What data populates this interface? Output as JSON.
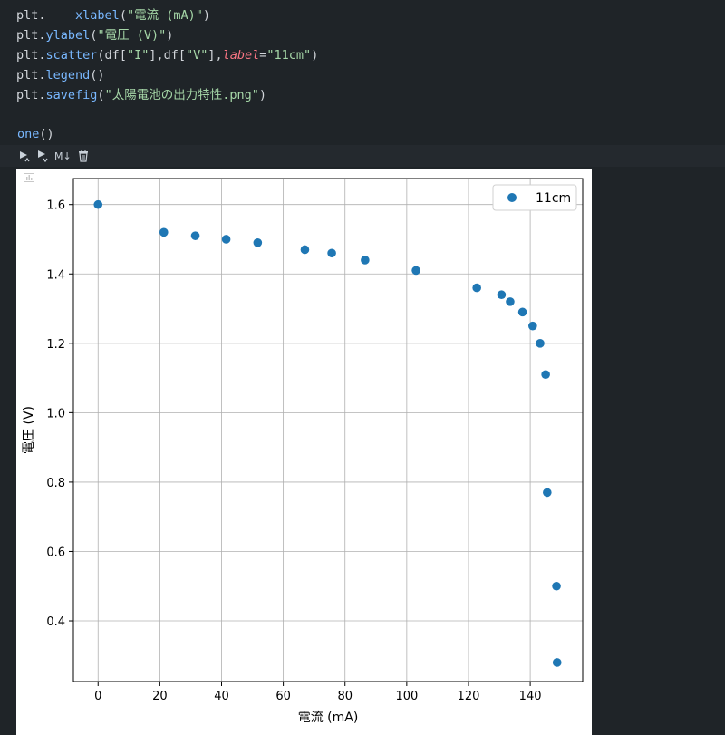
{
  "code": {
    "line1": {
      "obj": "plt.",
      "fn": "xlabel",
      "open": "(",
      "str": "\"電流 (mA)\"",
      "close": ")"
    },
    "line2": {
      "obj": "plt.",
      "fn": "ylabel",
      "open": "(",
      "str": "\"電圧 (V)\"",
      "close": ")"
    },
    "line3": {
      "obj": "plt.",
      "fn": "scatter",
      "args1": "(df[",
      "s1": "\"I\"",
      "args2": "],df[",
      "s2": "\"V\"",
      "args3": "],",
      "kw": "label",
      "eq": "=",
      "s3": "\"11cm\"",
      "close": ")"
    },
    "line4": {
      "obj": "plt.",
      "fn": "legend",
      "rest": "()"
    },
    "line5": {
      "obj": "plt.",
      "fn": "savefig",
      "open": "(",
      "str": "\"太陽電池の出力特性.png\"",
      "close": ")"
    },
    "line6": {
      "fn": "one",
      "rest": "()"
    }
  },
  "cell_toolbar": {
    "run_above_icon": "run-above-icon",
    "run_below_icon": "run-below-icon",
    "markdown_label": "M↓",
    "delete_icon": "trash-icon"
  },
  "colors": {
    "background": "#1f2428",
    "marker": "#1f77b4",
    "grid": "#b0b0b0"
  },
  "chart_data": {
    "type": "scatter",
    "title": "",
    "xlabel": "電流 (mA)",
    "ylabel": "電圧 (V)",
    "xlim": [
      -8,
      157
    ],
    "ylim": [
      0.225,
      1.675
    ],
    "xticks": [
      0,
      20,
      40,
      60,
      80,
      100,
      120,
      140
    ],
    "xtick_labels": [
      "0",
      "20",
      "40",
      "60",
      "80",
      "100",
      "120",
      "140"
    ],
    "yticks": [
      0.4,
      0.6,
      0.8,
      1.0,
      1.2,
      1.4,
      1.6
    ],
    "ytick_labels": [
      "0.4",
      "0.6",
      "0.8",
      "1.0",
      "1.2",
      "1.4",
      "1.6"
    ],
    "grid": true,
    "legend_position": "top-right",
    "series": [
      {
        "name": "11cm",
        "x": [
          0,
          21.3,
          31.5,
          41.5,
          51.7,
          67,
          75.7,
          86.5,
          103,
          122.7,
          130.7,
          133.5,
          137.5,
          140.8,
          143.2,
          145,
          145.5,
          148.5,
          148.7
        ],
        "y": [
          1.6,
          1.52,
          1.51,
          1.5,
          1.49,
          1.47,
          1.46,
          1.44,
          1.41,
          1.36,
          1.34,
          1.32,
          1.29,
          1.25,
          1.2,
          1.11,
          0.77,
          0.5,
          0.28
        ]
      }
    ]
  }
}
